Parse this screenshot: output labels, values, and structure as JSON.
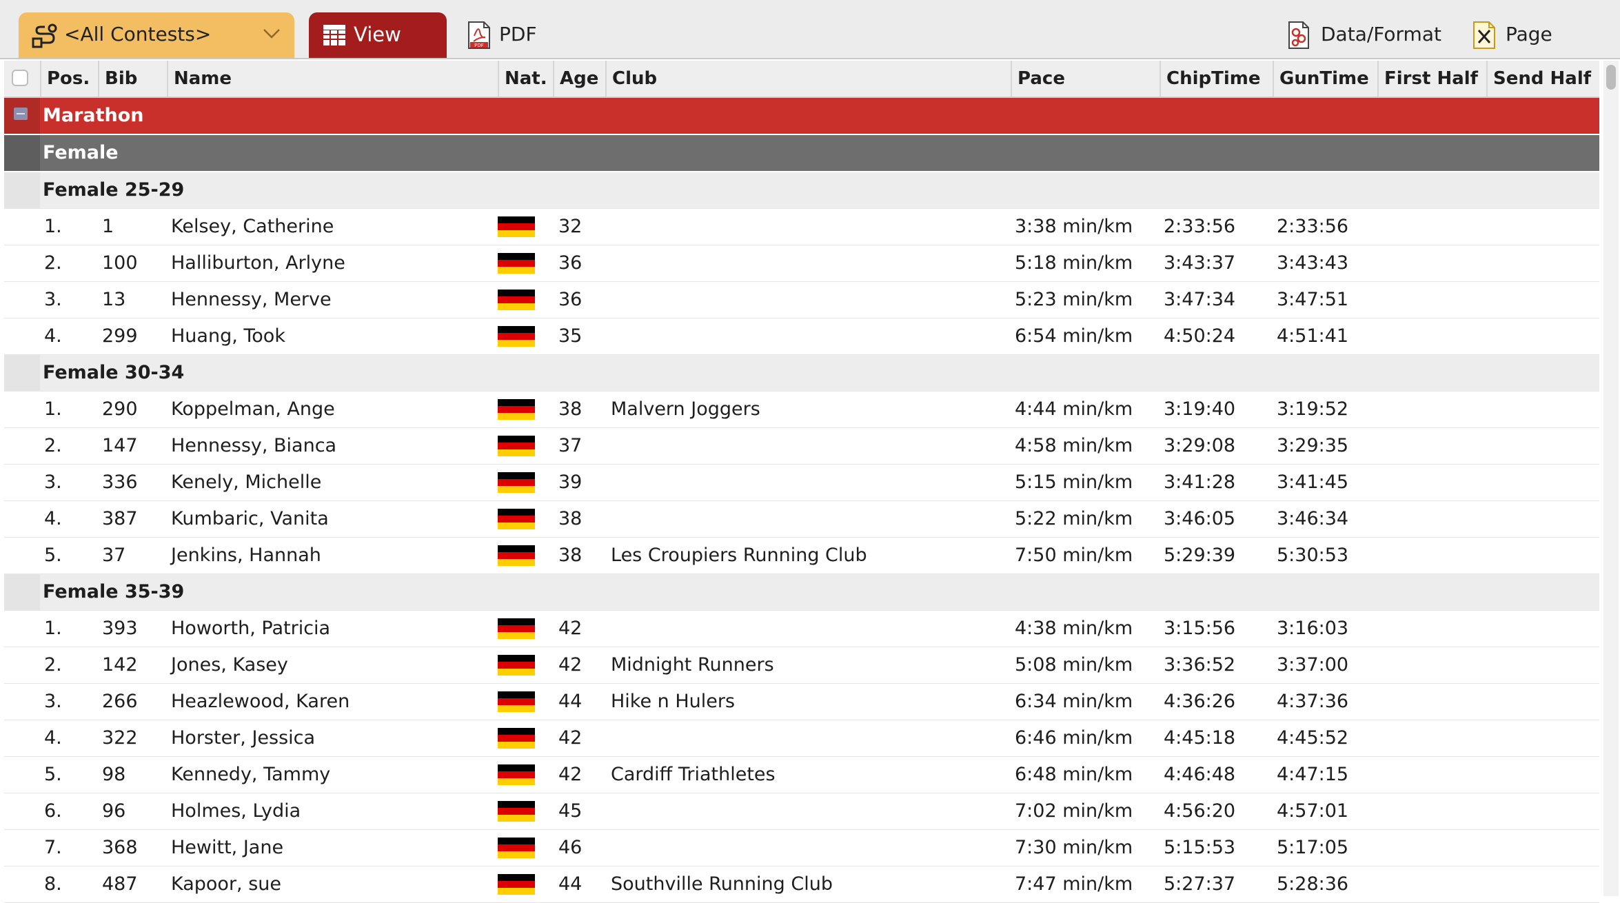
{
  "toolbar": {
    "contest_select": "<All Contests>",
    "view_label": "View",
    "pdf_label": "PDF",
    "data_format_label": "Data/Format",
    "page_label": "Page"
  },
  "columns": {
    "pos": "Pos.",
    "bib": "Bib",
    "name": "Name",
    "nat": "Nat.",
    "age": "Age",
    "club": "Club",
    "pace": "Pace",
    "chiptime": "ChipTime",
    "guntime": "GunTime",
    "first_half": "First Half",
    "send_half": "Send Half"
  },
  "groups": {
    "contest": "Marathon",
    "sex": "Female",
    "ag1": "Female 25-29",
    "ag2": "Female 30-34",
    "ag3": "Female 35-39"
  },
  "colors": {
    "flag": [
      "#000000",
      "#dd0000",
      "#ffce00"
    ]
  },
  "rows": [
    {
      "pos": "1.",
      "bib": "1",
      "name": "Kelsey, Catherine",
      "age": "32",
      "club": "",
      "pace": "3:38 min/km",
      "chip": "2:33:56",
      "gun": "2:33:56"
    },
    {
      "pos": "2.",
      "bib": "100",
      "name": "Halliburton, Arlyne",
      "age": "36",
      "club": "",
      "pace": "5:18 min/km",
      "chip": "3:43:37",
      "gun": "3:43:43"
    },
    {
      "pos": "3.",
      "bib": "13",
      "name": "Hennessy, Merve",
      "age": "36",
      "club": "",
      "pace": "5:23 min/km",
      "chip": "3:47:34",
      "gun": "3:47:51"
    },
    {
      "pos": "4.",
      "bib": "299",
      "name": "Huang, Took",
      "age": "35",
      "club": "",
      "pace": "6:54 min/km",
      "chip": "4:50:24",
      "gun": "4:51:41"
    },
    {
      "pos": "1.",
      "bib": "290",
      "name": "Koppelman, Ange",
      "age": "38",
      "club": "Malvern Joggers",
      "pace": "4:44 min/km",
      "chip": "3:19:40",
      "gun": "3:19:52"
    },
    {
      "pos": "2.",
      "bib": "147",
      "name": "Hennessy, Bianca",
      "age": "37",
      "club": "",
      "pace": "4:58 min/km",
      "chip": "3:29:08",
      "gun": "3:29:35"
    },
    {
      "pos": "3.",
      "bib": "336",
      "name": "Kenely, Michelle",
      "age": "39",
      "club": "",
      "pace": "5:15 min/km",
      "chip": "3:41:28",
      "gun": "3:41:45"
    },
    {
      "pos": "4.",
      "bib": "387",
      "name": "Kumbaric, Vanita",
      "age": "38",
      "club": "",
      "pace": "5:22 min/km",
      "chip": "3:46:05",
      "gun": "3:46:34"
    },
    {
      "pos": "5.",
      "bib": "37",
      "name": "Jenkins, Hannah",
      "age": "38",
      "club": "Les Croupiers Running Club",
      "pace": "7:50 min/km",
      "chip": "5:29:39",
      "gun": "5:30:53"
    },
    {
      "pos": "1.",
      "bib": "393",
      "name": "Howorth, Patricia",
      "age": "42",
      "club": "",
      "pace": "4:38 min/km",
      "chip": "3:15:56",
      "gun": "3:16:03"
    },
    {
      "pos": "2.",
      "bib": "142",
      "name": "Jones, Kasey",
      "age": "42",
      "club": "Midnight Runners",
      "pace": "5:08 min/km",
      "chip": "3:36:52",
      "gun": "3:37:00"
    },
    {
      "pos": "3.",
      "bib": "266",
      "name": "Heazlewood, Karen",
      "age": "44",
      "club": "Hike n Hulers",
      "pace": "6:34 min/km",
      "chip": "4:36:26",
      "gun": "4:37:36"
    },
    {
      "pos": "4.",
      "bib": "322",
      "name": "Horster, Jessica",
      "age": "42",
      "club": "",
      "pace": "6:46 min/km",
      "chip": "4:45:18",
      "gun": "4:45:52"
    },
    {
      "pos": "5.",
      "bib": "98",
      "name": "Kennedy, Tammy",
      "age": "42",
      "club": "Cardiff Triathletes",
      "pace": "6:48 min/km",
      "chip": "4:46:48",
      "gun": "4:47:15"
    },
    {
      "pos": "6.",
      "bib": "96",
      "name": "Holmes, Lydia",
      "age": "45",
      "club": "",
      "pace": "7:02 min/km",
      "chip": "4:56:20",
      "gun": "4:57:01"
    },
    {
      "pos": "7.",
      "bib": "368",
      "name": "Hewitt, Jane",
      "age": "46",
      "club": "",
      "pace": "7:30 min/km",
      "chip": "5:15:53",
      "gun": "5:17:05"
    },
    {
      "pos": "8.",
      "bib": "487",
      "name": "Kapoor, sue",
      "age": "44",
      "club": "Southville Running Club",
      "pace": "7:47 min/km",
      "chip": "5:27:37",
      "gun": "5:28:36"
    }
  ]
}
